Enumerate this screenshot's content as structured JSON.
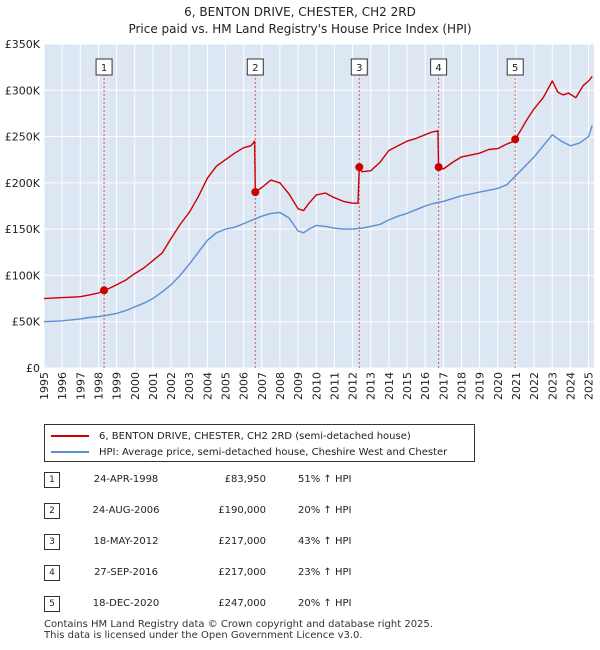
{
  "chart_data": {
    "type": "line",
    "title": "6, BENTON DRIVE, CHESTER, CH2 2RD",
    "subtitle": "Price paid vs. HM Land Registry's House Price Index (HPI)",
    "xlim": [
      1995.0,
      2025.3
    ],
    "ylim": [
      0,
      350000
    ],
    "ytick_values": [
      0,
      50000,
      100000,
      150000,
      200000,
      250000,
      300000,
      350000
    ],
    "ytick_labels": [
      "£0",
      "£50K",
      "£100K",
      "£150K",
      "£200K",
      "£250K",
      "£300K",
      "£350K"
    ],
    "xtick_values": [
      1995,
      1996,
      1997,
      1998,
      1999,
      2000,
      2001,
      2002,
      2003,
      2004,
      2005,
      2006,
      2007,
      2008,
      2009,
      2010,
      2011,
      2012,
      2013,
      2014,
      2015,
      2016,
      2017,
      2018,
      2019,
      2020,
      2021,
      2022,
      2023,
      2024,
      2025
    ],
    "xtick_labels": [
      "1995",
      "1996",
      "1997",
      "1998",
      "1999",
      "2000",
      "2001",
      "2002",
      "2003",
      "2004",
      "2005",
      "2006",
      "2007",
      "2008",
      "2009",
      "2010",
      "2011",
      "2012",
      "2013",
      "2014",
      "2015",
      "2016",
      "2017",
      "2018",
      "2019",
      "2020",
      "2021",
      "2022",
      "2023",
      "2024",
      "2025"
    ],
    "series": [
      {
        "name": "6, BENTON DRIVE, CHESTER, CH2 2RD (semi-detached house)",
        "color": "#cc0000",
        "x": [
          1995.0,
          1995.5,
          1996.0,
          1996.5,
          1997.0,
          1997.5,
          1998.0,
          1998.31,
          1998.6,
          1999.0,
          1999.5,
          2000.0,
          2000.5,
          2001.0,
          2001.5,
          2002.0,
          2002.5,
          2003.0,
          2003.5,
          2004.0,
          2004.5,
          2005.0,
          2005.5,
          2006.0,
          2006.4,
          2006.6,
          2006.64,
          2007.0,
          2007.5,
          2008.0,
          2008.5,
          2009.0,
          2009.3,
          2009.6,
          2010.0,
          2010.5,
          2011.0,
          2011.5,
          2012.0,
          2012.3,
          2012.37,
          2012.5,
          2013.0,
          2013.5,
          2014.0,
          2014.5,
          2015.0,
          2015.5,
          2016.0,
          2016.4,
          2016.7,
          2016.74,
          2017.0,
          2017.5,
          2018.0,
          2018.5,
          2019.0,
          2019.5,
          2020.0,
          2020.5,
          2020.9,
          2020.96,
          2021.3,
          2021.6,
          2022.0,
          2022.5,
          2023.0,
          2023.3,
          2023.6,
          2023.9,
          2024.3,
          2024.7,
          2025.0,
          2025.2
        ],
        "values": [
          75000,
          75500,
          76000,
          76500,
          77000,
          79000,
          81000,
          83950,
          86000,
          90000,
          95000,
          102000,
          108000,
          116000,
          124000,
          140000,
          155000,
          168000,
          185000,
          205000,
          218000,
          225000,
          232000,
          238000,
          240000,
          245000,
          190000,
          195000,
          203000,
          200000,
          188000,
          172000,
          170000,
          178000,
          187000,
          189000,
          184000,
          180000,
          178000,
          178000,
          217000,
          212000,
          213000,
          222000,
          235000,
          240000,
          245000,
          248000,
          252000,
          255000,
          256000,
          217000,
          215000,
          222000,
          228000,
          230000,
          232000,
          236000,
          237000,
          242000,
          245000,
          247000,
          258000,
          268000,
          280000,
          292000,
          310000,
          298000,
          295000,
          297000,
          292000,
          305000,
          310000,
          315000
        ]
      },
      {
        "name": "HPI: Average price, semi-detached house, Cheshire West and Chester",
        "color": "#5b8fd0",
        "x": [
          1995.0,
          1995.5,
          1996.0,
          1996.5,
          1997.0,
          1997.5,
          1998.0,
          1998.5,
          1999.0,
          1999.5,
          2000.0,
          2000.5,
          2001.0,
          2001.5,
          2002.0,
          2002.5,
          2003.0,
          2003.5,
          2004.0,
          2004.5,
          2005.0,
          2005.5,
          2006.0,
          2006.5,
          2007.0,
          2007.5,
          2008.0,
          2008.5,
          2009.0,
          2009.3,
          2009.6,
          2010.0,
          2010.5,
          2011.0,
          2011.5,
          2012.0,
          2012.5,
          2013.0,
          2013.5,
          2014.0,
          2014.5,
          2015.0,
          2015.5,
          2016.0,
          2016.5,
          2017.0,
          2017.5,
          2018.0,
          2018.5,
          2019.0,
          2019.5,
          2020.0,
          2020.5,
          2021.0,
          2021.5,
          2022.0,
          2022.5,
          2023.0,
          2023.5,
          2024.0,
          2024.5,
          2025.0,
          2025.2
        ],
        "values": [
          50000,
          50500,
          51000,
          52000,
          53000,
          54500,
          55500,
          57000,
          59000,
          62000,
          66000,
          70000,
          75000,
          82000,
          90000,
          100000,
          112000,
          125000,
          138000,
          146000,
          150000,
          152000,
          156000,
          160000,
          164000,
          167000,
          168000,
          162000,
          148000,
          146000,
          150000,
          154000,
          153000,
          151000,
          150000,
          150000,
          151000,
          153000,
          155000,
          160000,
          164000,
          167000,
          171000,
          175000,
          178000,
          180000,
          183000,
          186000,
          188000,
          190000,
          192000,
          194000,
          198000,
          208000,
          218000,
          228000,
          240000,
          252000,
          245000,
          240000,
          243000,
          250000,
          262000
        ]
      }
    ],
    "markers": [
      {
        "id": "1",
        "x": 1998.31,
        "value": 83950
      },
      {
        "id": "2",
        "x": 2006.64,
        "value": 190000
      },
      {
        "id": "3",
        "x": 2012.37,
        "value": 217000
      },
      {
        "id": "4",
        "x": 2016.74,
        "value": 217000
      },
      {
        "id": "5",
        "x": 2020.96,
        "value": 247000
      }
    ],
    "legend_position": "bottom"
  },
  "legend": {
    "property": "6, BENTON DRIVE, CHESTER, CH2 2RD (semi-detached house)",
    "hpi": "HPI: Average price, semi-detached house, Cheshire West and Chester"
  },
  "sales": [
    {
      "num": "1",
      "date": "24-APR-1998",
      "price": "£83,950",
      "hpi": "51% ↑ HPI"
    },
    {
      "num": "2",
      "date": "24-AUG-2006",
      "price": "£190,000",
      "hpi": "20% ↑ HPI"
    },
    {
      "num": "3",
      "date": "18-MAY-2012",
      "price": "£217,000",
      "hpi": "43% ↑ HPI"
    },
    {
      "num": "4",
      "date": "27-SEP-2016",
      "price": "£217,000",
      "hpi": "23% ↑ HPI"
    },
    {
      "num": "5",
      "date": "18-DEC-2020",
      "price": "£247,000",
      "hpi": "20% ↑ HPI"
    }
  ],
  "footer": {
    "line1": "Contains HM Land Registry data © Crown copyright and database right 2025.",
    "line2": "This data is licensed under the Open Government Licence v3.0."
  }
}
